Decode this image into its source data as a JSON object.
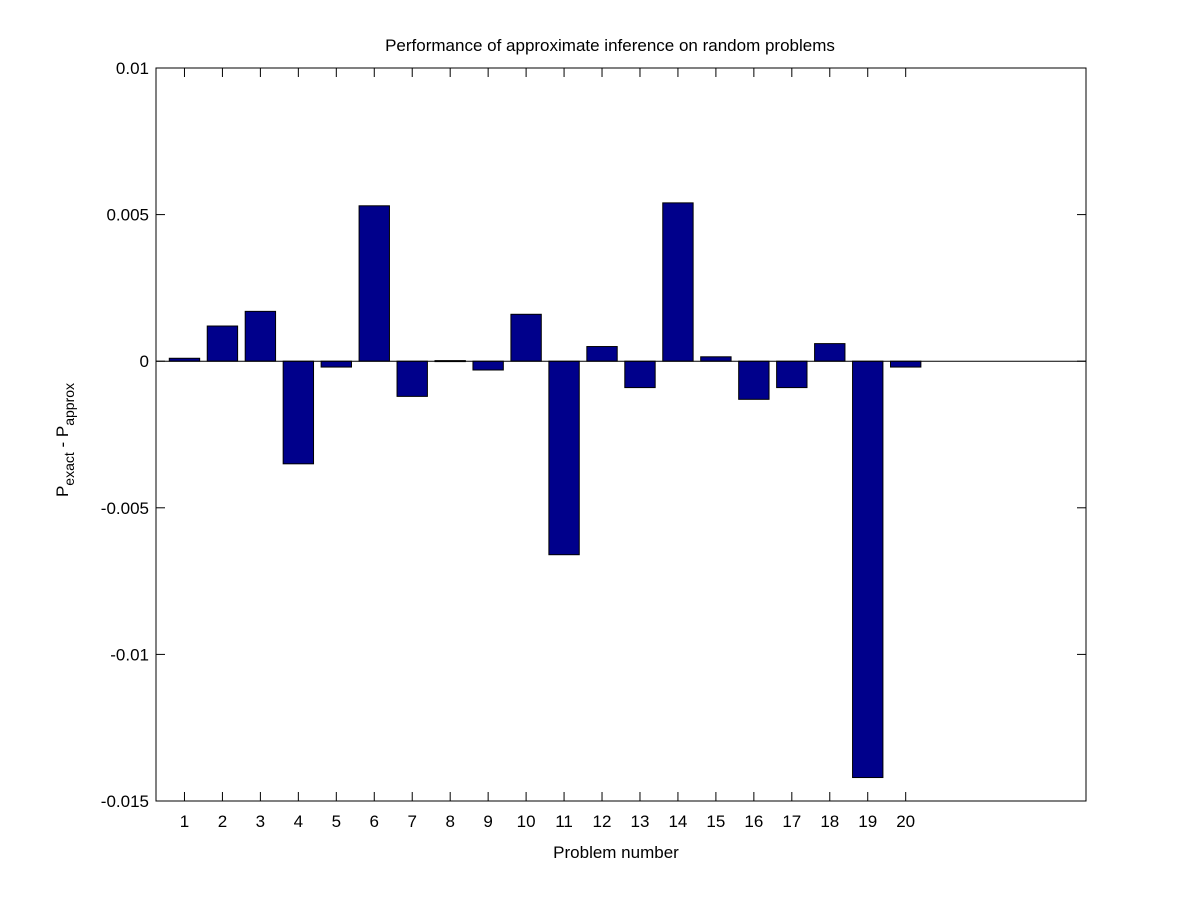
{
  "chart_data": {
    "type": "bar",
    "title": "Performance of approximate inference on random problems",
    "xlabel": "Problem number",
    "ylabel": {
      "base": "P",
      "sub1": "exact",
      "mid": " - P",
      "sub2": "approx"
    },
    "categories": [
      "1",
      "2",
      "3",
      "4",
      "5",
      "6",
      "7",
      "8",
      "9",
      "10",
      "11",
      "12",
      "13",
      "14",
      "15",
      "16",
      "17",
      "18",
      "19",
      "20"
    ],
    "values": [
      0.0001,
      0.0012,
      0.0017,
      -0.0035,
      -0.0002,
      0.0053,
      -0.0012,
      2e-05,
      -0.0003,
      0.0016,
      -0.0066,
      0.0005,
      -0.0009,
      0.0054,
      0.00015,
      -0.0013,
      -0.0009,
      0.0006,
      -0.0142,
      -0.0002
    ],
    "xlim": [
      0.25,
      24.75
    ],
    "ylim": [
      -0.015,
      0.01
    ],
    "yticks": [
      -0.015,
      -0.01,
      -0.005,
      0,
      0.005,
      0.01
    ],
    "ytick_labels": [
      "-0.015",
      "-0.01",
      "-0.005",
      "0",
      "0.005",
      "0.01"
    ],
    "bar_color": "#00008b",
    "grid": false,
    "legend": "none"
  }
}
